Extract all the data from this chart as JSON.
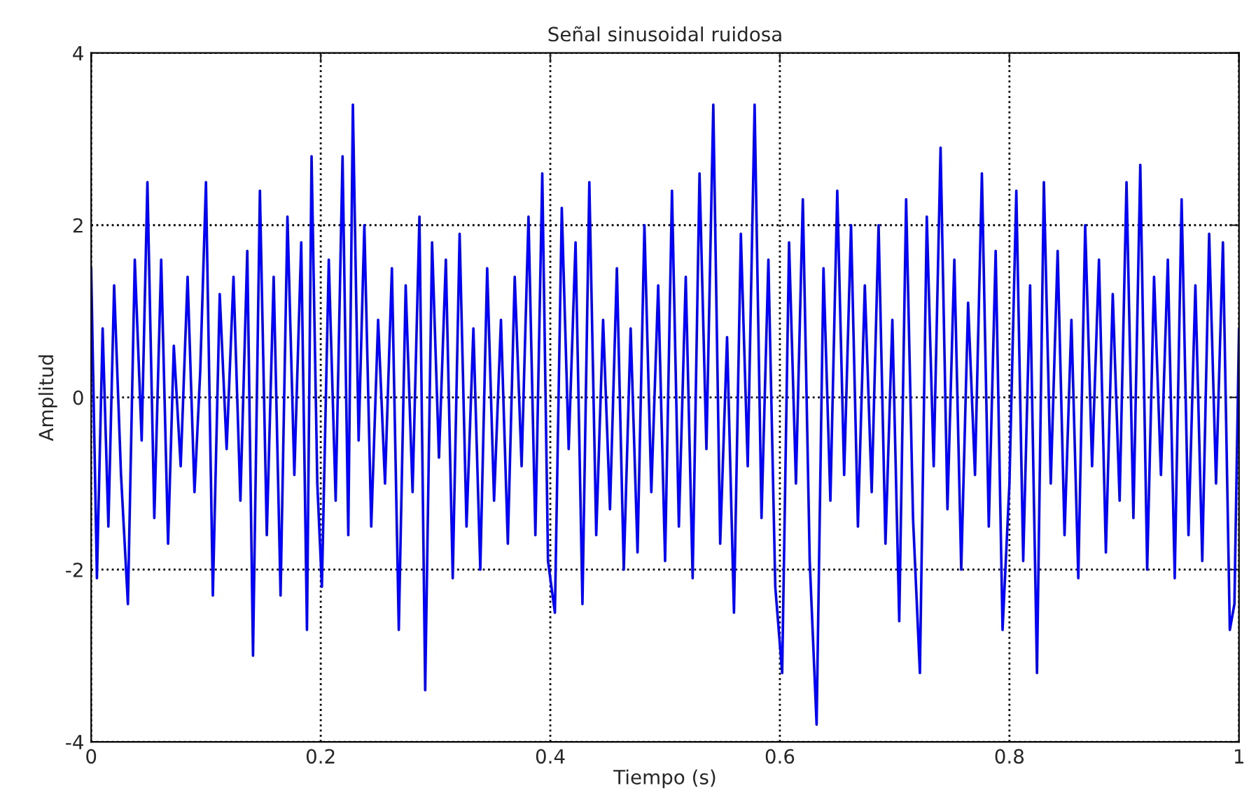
{
  "chart_data": {
    "type": "line",
    "title": "Señal sinusoidal ruidosa",
    "xlabel": "Tiempo (s)",
    "ylabel": "Amplitud",
    "xlim": [
      0,
      1
    ],
    "ylim": [
      -4,
      4
    ],
    "xticks": [
      0,
      0.2,
      0.4,
      0.6,
      0.8,
      1
    ],
    "yticks": [
      -4,
      -2,
      0,
      2,
      4
    ],
    "grid": true,
    "line_style": "solid",
    "series": [
      {
        "color": "#0000ff",
        "x": [
          0.0,
          0.005,
          0.01,
          0.015,
          0.02,
          0.026,
          0.032,
          0.038,
          0.044,
          0.049,
          0.055,
          0.061,
          0.067,
          0.072,
          0.078,
          0.084,
          0.09,
          0.095,
          0.1,
          0.106,
          0.112,
          0.118,
          0.124,
          0.13,
          0.136,
          0.141,
          0.147,
          0.153,
          0.159,
          0.165,
          0.171,
          0.177,
          0.183,
          0.188,
          0.192,
          0.197,
          0.201,
          0.207,
          0.213,
          0.219,
          0.224,
          0.228,
          0.233,
          0.238,
          0.244,
          0.25,
          0.256,
          0.262,
          0.268,
          0.274,
          0.28,
          0.286,
          0.291,
          0.297,
          0.303,
          0.309,
          0.315,
          0.321,
          0.327,
          0.333,
          0.339,
          0.345,
          0.351,
          0.357,
          0.363,
          0.369,
          0.375,
          0.381,
          0.387,
          0.393,
          0.398,
          0.404,
          0.41,
          0.416,
          0.422,
          0.428,
          0.434,
          0.44,
          0.446,
          0.452,
          0.458,
          0.464,
          0.47,
          0.476,
          0.482,
          0.488,
          0.494,
          0.5,
          0.506,
          0.512,
          0.518,
          0.524,
          0.53,
          0.536,
          0.542,
          0.548,
          0.554,
          0.56,
          0.566,
          0.572,
          0.578,
          0.584,
          0.59,
          0.596,
          0.602,
          0.608,
          0.614,
          0.62,
          0.626,
          0.632,
          0.638,
          0.644,
          0.65,
          0.656,
          0.662,
          0.668,
          0.674,
          0.68,
          0.686,
          0.692,
          0.698,
          0.704,
          0.71,
          0.716,
          0.722,
          0.728,
          0.734,
          0.74,
          0.746,
          0.752,
          0.758,
          0.764,
          0.77,
          0.776,
          0.782,
          0.788,
          0.794,
          0.8,
          0.806,
          0.812,
          0.818,
          0.824,
          0.83,
          0.836,
          0.842,
          0.848,
          0.854,
          0.86,
          0.866,
          0.872,
          0.878,
          0.884,
          0.89,
          0.896,
          0.902,
          0.908,
          0.914,
          0.92,
          0.926,
          0.932,
          0.938,
          0.944,
          0.95,
          0.956,
          0.962,
          0.968,
          0.974,
          0.98,
          0.986,
          0.992,
          0.996,
          1.0
        ],
        "values": [
          1.5,
          -2.1,
          0.8,
          -1.5,
          1.3,
          -0.9,
          -2.4,
          1.6,
          -0.5,
          2.5,
          -1.4,
          1.6,
          -1.7,
          0.6,
          -0.8,
          1.4,
          -1.1,
          0.3,
          2.5,
          -2.3,
          1.2,
          -0.6,
          1.4,
          -1.2,
          1.7,
          -3.0,
          2.4,
          -1.6,
          1.4,
          -2.3,
          2.1,
          -0.9,
          1.8,
          -2.7,
          2.8,
          -1.0,
          -2.2,
          1.6,
          -1.2,
          2.8,
          -1.6,
          3.4,
          -0.5,
          2.0,
          -1.5,
          0.9,
          -1.0,
          1.5,
          -2.7,
          1.3,
          -1.1,
          2.1,
          -3.4,
          1.8,
          -0.7,
          1.6,
          -2.1,
          1.9,
          -1.5,
          0.8,
          -2.0,
          1.5,
          -1.2,
          0.9,
          -1.7,
          1.4,
          -0.8,
          2.1,
          -1.6,
          2.6,
          -1.9,
          -2.5,
          2.2,
          -0.6,
          1.8,
          -2.4,
          2.5,
          -1.6,
          0.9,
          -1.3,
          1.5,
          -2.0,
          0.8,
          -1.8,
          2.0,
          -1.1,
          1.3,
          -1.9,
          2.4,
          -1.5,
          1.4,
          -2.1,
          2.6,
          -0.6,
          3.4,
          -1.7,
          0.7,
          -2.5,
          1.9,
          -0.8,
          3.4,
          -1.4,
          1.6,
          -2.2,
          -3.2,
          1.8,
          -1.0,
          2.3,
          -1.9,
          -3.8,
          1.5,
          -1.2,
          2.4,
          -0.9,
          2.0,
          -1.5,
          1.3,
          -1.1,
          2.0,
          -1.7,
          0.9,
          -2.6,
          2.3,
          -1.4,
          -3.2,
          2.1,
          -0.8,
          2.9,
          -1.3,
          1.6,
          -2.0,
          1.1,
          -0.9,
          2.6,
          -1.5,
          1.7,
          -2.7,
          -1.0,
          2.4,
          -1.9,
          1.3,
          -3.2,
          2.5,
          -1.0,
          1.7,
          -1.6,
          0.9,
          -2.1,
          2.0,
          -0.8,
          1.6,
          -1.8,
          1.2,
          -1.2,
          2.5,
          -1.4,
          2.7,
          -2.0,
          1.4,
          -0.9,
          1.6,
          -2.1,
          2.3,
          -1.6,
          1.3,
          -1.9,
          1.9,
          -1.0,
          1.8,
          -2.7,
          -2.4,
          0.8
        ]
      }
    ]
  }
}
